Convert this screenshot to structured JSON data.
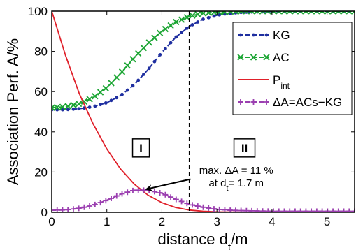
{
  "chart_data": {
    "type": "line",
    "xlabel": "distance d_t/m",
    "ylabel": "Association Perf. A/%",
    "xlim": [
      0,
      5.5
    ],
    "ylim": [
      0,
      100
    ],
    "xticks": [
      0,
      1,
      2,
      3,
      4,
      5
    ],
    "yticks": [
      0,
      20,
      40,
      60,
      80,
      100
    ],
    "grid": false,
    "legend_position": "top-right",
    "series": [
      {
        "name": "KG",
        "style": "dashed line with dot markers",
        "color": "#1f2fa0",
        "x": [
          0,
          0.25,
          0.5,
          0.75,
          1.0,
          1.25,
          1.5,
          1.75,
          2.0,
          2.25,
          2.5,
          2.75,
          3.0,
          3.25,
          3.5,
          4.0,
          4.5,
          5.0,
          5.5
        ],
        "y": [
          51,
          51,
          51.5,
          52.5,
          54.5,
          58,
          63.5,
          71,
          79.5,
          87,
          92.5,
          96,
          98,
          99,
          99.5,
          99.8,
          100,
          100,
          100
        ]
      },
      {
        "name": "AC",
        "style": "dashed line with x markers",
        "color": "#1aa532",
        "x": [
          0,
          0.25,
          0.5,
          0.75,
          1.0,
          1.25,
          1.5,
          1.75,
          2.0,
          2.25,
          2.5,
          2.75,
          3.0,
          3.25,
          3.5,
          4.0,
          4.5,
          5.0,
          5.5
        ],
        "y": [
          52,
          52.5,
          54,
          57,
          62,
          69,
          77,
          84,
          90,
          94.5,
          97.5,
          99,
          99.5,
          99.8,
          100,
          100,
          100,
          100,
          100
        ]
      },
      {
        "name": "P_int",
        "legend_main": "P",
        "legend_sub": "int",
        "style": "solid line",
        "color": "#e0202a",
        "x": [
          0,
          0.25,
          0.5,
          0.75,
          1.0,
          1.25,
          1.5,
          1.75,
          2.0,
          2.25,
          2.5,
          2.75,
          3.0,
          3.5,
          4.0,
          5.5
        ],
        "y": [
          100,
          78,
          59,
          44,
          31.5,
          21.5,
          14,
          8.5,
          4.8,
          2.4,
          1.1,
          0.5,
          0.2,
          0.05,
          0,
          0
        ]
      },
      {
        "name": "ΔA=ACs−KG",
        "style": "dashed line with + markers",
        "color": "#9b3fb0",
        "x": [
          0,
          0.25,
          0.5,
          0.75,
          1.0,
          1.25,
          1.5,
          1.75,
          2.0,
          2.25,
          2.5,
          2.75,
          3.0,
          3.25,
          3.5,
          4.0,
          4.5,
          5.0,
          5.5
        ],
        "y": [
          1,
          1.2,
          2,
          3.5,
          6,
          9,
          11,
          11,
          9.5,
          6.5,
          4,
          2.5,
          1.5,
          1,
          0.8,
          0.5,
          0.5,
          0.5,
          0.5
        ]
      }
    ],
    "vertical_line": {
      "x": 2.5,
      "style": "dashed",
      "color": "#000000"
    },
    "regions": [
      {
        "label": "I",
        "x": 1.62,
        "y": 32
      },
      {
        "label": "II",
        "x": 3.5,
        "y": 32
      }
    ],
    "annotation": {
      "line1": "max. ΔA = 11 %",
      "line2_prefix": "at d",
      "line2_sub": "t",
      "line2_suffix": "= 1.7 m",
      "text_x": 3.35,
      "text_y": 17,
      "arrow_from_x": 2.52,
      "arrow_from_y": 16.5,
      "arrow_to_x": 1.72,
      "arrow_to_y": 11.5
    }
  }
}
